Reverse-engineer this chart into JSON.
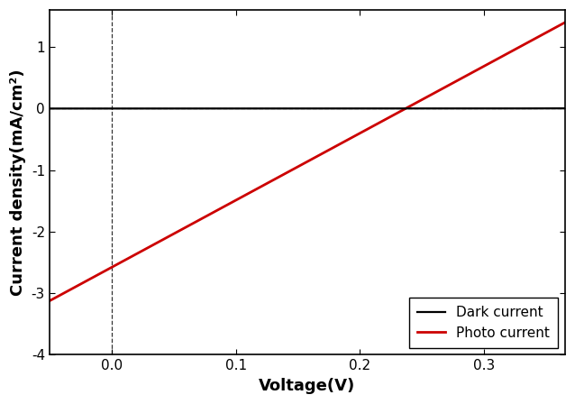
{
  "xlabel": "Voltage(V)",
  "ylabel": "Current density(mA/cm²)",
  "xlim": [
    -0.05,
    0.365
  ],
  "ylim": [
    -4.0,
    1.6
  ],
  "xticks": [
    0.0,
    0.1,
    0.2,
    0.3
  ],
  "yticks": [
    -4,
    -3,
    -2,
    -1,
    0,
    1
  ],
  "dark_color": "#000000",
  "photo_color": "#cc0000",
  "dark_label": "Dark current",
  "photo_label": "Photo current",
  "dark_I0": 5e-06,
  "dark_n": 2.2,
  "dark_Vt": 0.02585,
  "photo_slope": 10.9,
  "photo_intercept": -2.58,
  "vline_x": 0.0,
  "hline_y": 0.0,
  "background_color": "#ffffff",
  "legend_fontsize": 11,
  "axis_label_fontsize": 13,
  "tick_fontsize": 11,
  "linewidth_dark": 1.6,
  "linewidth_photo": 2.0
}
